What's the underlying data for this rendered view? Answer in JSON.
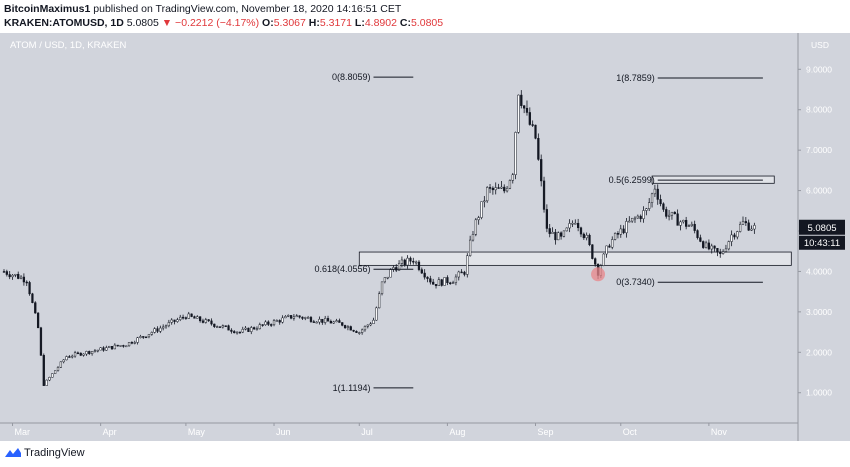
{
  "header": {
    "author": "BitcoinMaximus1",
    "published": "published on TradingView.com, November 18, 2020 14:16:51 CET",
    "symbol": "KRAKEN:ATOMUSD, 1D",
    "price": "5.0805",
    "change": "▼ −0.2212 (−4.17%)",
    "o_label": "O:",
    "o": "5.3067",
    "h_label": "H:",
    "h": "5.3171",
    "l_label": "L:",
    "l": "4.8902",
    "c_label": "C:",
    "c": "5.0805"
  },
  "footer": {
    "brand": "TradingView"
  },
  "colors": {
    "up": "#ffffff",
    "down": "#131722",
    "plot_bg": "#d1d4dc",
    "price_tag": "#131722",
    "marker": "#e8868a"
  },
  "chart_data": {
    "type": "candlestick",
    "title": "ATOM / USD, 1D, KRAKEN",
    "currency_label": "USD",
    "y_ticks": [
      "9.0000",
      "8.0000",
      "7.0000",
      "6.0000",
      "5.0000",
      "4.0000",
      "3.0000",
      "2.0000",
      "1.0000"
    ],
    "y_tick_values": [
      9,
      8,
      7,
      6,
      5,
      4,
      3,
      2,
      1
    ],
    "ylim": [
      0.35,
      9.7
    ],
    "x_ticks": [
      "Mar",
      "Apr",
      "May",
      "Jun",
      "Jul",
      "Aug",
      "Sep",
      "Oct",
      "Nov"
    ],
    "x_tick_dates": [
      "2020-03-01",
      "2020-04-01",
      "2020-05-01",
      "2020-06-01",
      "2020-07-01",
      "2020-08-01",
      "2020-09-01",
      "2020-10-01",
      "2020-11-01"
    ],
    "xlim": [
      "2020-02-27",
      "2020-12-02"
    ],
    "price_label": "5.0805",
    "countdown_label": "10:43:11",
    "key_points": [
      {
        "date": "2020-02-27",
        "close": 4.0
      },
      {
        "date": "2020-03-06",
        "close": 3.8
      },
      {
        "date": "2020-03-10",
        "close": 2.6
      },
      {
        "date": "2020-03-12",
        "close": 1.2
      },
      {
        "date": "2020-03-20",
        "close": 1.9
      },
      {
        "date": "2020-04-10",
        "close": 2.2
      },
      {
        "date": "2020-05-01",
        "close": 2.9
      },
      {
        "date": "2020-05-20",
        "close": 2.5
      },
      {
        "date": "2020-06-08",
        "close": 2.9
      },
      {
        "date": "2020-06-25",
        "close": 2.7
      },
      {
        "date": "2020-07-01",
        "close": 2.5
      },
      {
        "date": "2020-07-06",
        "close": 2.8
      },
      {
        "date": "2020-07-09",
        "close": 3.7
      },
      {
        "date": "2020-07-13",
        "close": 4.1
      },
      {
        "date": "2020-07-20",
        "close": 4.3
      },
      {
        "date": "2020-07-27",
        "close": 3.7
      },
      {
        "date": "2020-08-03",
        "close": 3.8
      },
      {
        "date": "2020-08-07",
        "close": 4.0
      },
      {
        "date": "2020-08-10",
        "close": 5.0
      },
      {
        "date": "2020-08-15",
        "close": 6.0
      },
      {
        "date": "2020-08-21",
        "close": 6.0
      },
      {
        "date": "2020-08-24",
        "close": 6.5
      },
      {
        "date": "2020-08-26",
        "close": 8.5
      },
      {
        "date": "2020-08-29",
        "close": 7.8
      },
      {
        "date": "2020-09-01",
        "close": 7.3
      },
      {
        "date": "2020-09-05",
        "close": 5.0
      },
      {
        "date": "2020-09-10",
        "close": 4.8
      },
      {
        "date": "2020-09-15",
        "close": 5.3
      },
      {
        "date": "2020-09-19",
        "close": 4.8
      },
      {
        "date": "2020-09-23",
        "close": 4.0
      },
      {
        "date": "2020-09-27",
        "close": 4.7
      },
      {
        "date": "2020-10-04",
        "close": 5.2
      },
      {
        "date": "2020-10-10",
        "close": 5.5
      },
      {
        "date": "2020-10-13",
        "close": 6.1
      },
      {
        "date": "2020-10-16",
        "close": 5.5
      },
      {
        "date": "2020-10-20",
        "close": 5.3
      },
      {
        "date": "2020-10-26",
        "close": 5.1
      },
      {
        "date": "2020-10-31",
        "close": 4.6
      },
      {
        "date": "2020-11-05",
        "close": 4.4
      },
      {
        "date": "2020-11-09",
        "close": 4.9
      },
      {
        "date": "2020-11-13",
        "close": 5.2
      },
      {
        "date": "2020-11-17",
        "close": 5.08
      }
    ],
    "fib_levels": [
      {
        "label": "0(8.8059)",
        "value": 8.8059,
        "from": "2020-07-06",
        "to": "2020-07-20"
      },
      {
        "label": "0.618(4.0556)",
        "value": 4.0556,
        "from": "2020-07-06",
        "to": "2020-07-20"
      },
      {
        "label": "1(1.1194)",
        "value": 1.1194,
        "from": "2020-07-06",
        "to": "2020-07-20"
      },
      {
        "label": "1(8.7859)",
        "value": 8.7859,
        "from": "2020-10-14",
        "to": "2020-11-20"
      },
      {
        "label": "0.5(6.2599)",
        "value": 6.2599,
        "from": "2020-10-14",
        "to": "2020-11-20"
      },
      {
        "label": "0(3.7340)",
        "value": 3.734,
        "from": "2020-10-14",
        "to": "2020-11-20"
      }
    ],
    "zones": [
      {
        "from": "2020-07-01",
        "to": "2020-11-30",
        "low": 4.15,
        "high": 4.48
      },
      {
        "from": "2020-10-12",
        "to": "2020-11-24",
        "low": 6.18,
        "high": 6.36
      }
    ],
    "marker": {
      "date": "2020-09-23",
      "value": 3.93
    }
  }
}
